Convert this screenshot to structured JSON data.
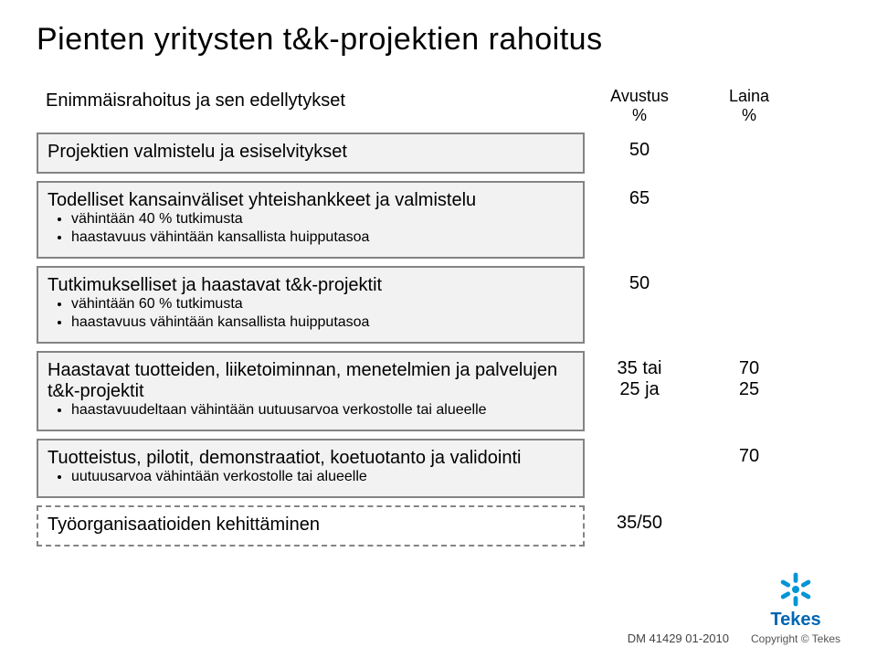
{
  "title": "Pienten yritysten t&k-projektien rahoitus",
  "headers": {
    "left": "Enimmäisrahoitus ja sen edellytykset",
    "col_avustus": "Avustus\n%",
    "col_laina": "Laina\n%"
  },
  "rows": [
    {
      "kind": "boxed",
      "label": "Projektien valmistelu ja esiselvitykset",
      "sub": [],
      "avustus": "50",
      "laina": ""
    },
    {
      "kind": "boxed",
      "label": "Todelliset kansainväliset yhteishankkeet ja valmistelu",
      "sub": [
        "vähintään 40 % tutkimusta",
        "haastavuus vähintään kansallista huipputasoa"
      ],
      "avustus": "65",
      "laina": ""
    },
    {
      "kind": "boxed",
      "label": "Tutkimukselliset ja haastavat t&k-projektit",
      "sub": [
        "vähintään 60 % tutkimusta",
        "haastavuus vähintään kansallista huipputasoa"
      ],
      "avustus": "50",
      "laina": ""
    },
    {
      "kind": "boxed",
      "label": "Haastavat tuotteiden, liiketoiminnan, menetelmien ja palvelujen t&k-projektit",
      "sub": [
        "haastavuudeltaan vähintään uutuusarvoa verkostolle tai alueelle"
      ],
      "avustus": "35  tai\n25  ja",
      "laina": "70\n25"
    },
    {
      "kind": "boxed",
      "label": "Tuotteistus, pilotit, demonstraatiot, koetuotanto ja validointi",
      "sub": [
        "uutuusarvoa vähintään verkostolle tai alueelle"
      ],
      "avustus": "",
      "laina": "70"
    },
    {
      "kind": "dashed",
      "label": "Työorganisaatioiden kehittäminen",
      "sub": [],
      "avustus": "35/50",
      "laina": ""
    }
  ],
  "footer": {
    "docref": "DM 41429  01-2010",
    "copyright": "Copyright © Tekes",
    "brand": "Tekes"
  },
  "colors": {
    "box_bg": "#f2f2f2",
    "box_border": "#848484",
    "brand_blue": "#0066b3"
  }
}
